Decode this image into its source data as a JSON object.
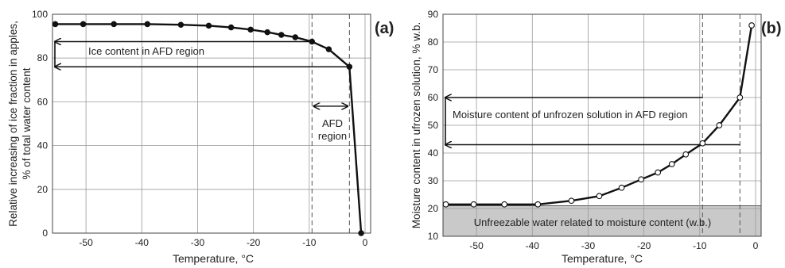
{
  "chart_data": [
    {
      "type": "line",
      "panel_label": "(a)",
      "xlabel": "Temperature, ",
      "xlabel_unit": "°C",
      "ylabel_lines": [
        "Relative increasing of ice fraction in apples,",
        "% of total water content"
      ],
      "xlim": [
        -56,
        1
      ],
      "ylim": [
        0,
        100
      ],
      "x_ticks": [
        -50,
        -40,
        -30,
        -20,
        -10,
        0
      ],
      "x_tick_labels": [
        "-50",
        "-40",
        "-30",
        "-20",
        "-10",
        "0"
      ],
      "y_ticks": [
        0,
        20,
        40,
        60,
        80,
        100
      ],
      "y_tick_labels": [
        "0",
        "20",
        "40",
        "60",
        "80",
        "100"
      ],
      "grid": true,
      "series": [
        {
          "marker": "filled",
          "x": [
            -55.5,
            -50.5,
            -45,
            -39,
            -33,
            -28,
            -24,
            -20.5,
            -17.5,
            -15,
            -12.5,
            -9.5,
            -6.5,
            -2.8,
            -0.7
          ],
          "y": [
            95.5,
            95.5,
            95.5,
            95.5,
            95.2,
            94.8,
            94,
            93,
            91.8,
            90.6,
            89.5,
            87.5,
            84,
            76,
            0
          ]
        }
      ],
      "vlines": [
        -9.5,
        -2.8
      ],
      "hlines": [
        87.5,
        76
      ],
      "annotations": {
        "ice_content": "Ice content in AFD region",
        "afd_line1": "AFD",
        "afd_line2": "region"
      }
    },
    {
      "type": "line",
      "panel_label": "(b)",
      "xlabel": "Temperature, ",
      "xlabel_unit": "°C",
      "ylabel_lines": [
        "Moisture content in ufrozen solution, % w.b."
      ],
      "xlim": [
        -56,
        1
      ],
      "ylim": [
        10,
        90
      ],
      "x_ticks": [
        -50,
        -40,
        -30,
        -20,
        -10,
        0
      ],
      "x_tick_labels": [
        "-50",
        "-40",
        "-30",
        "-20",
        "-10",
        "0"
      ],
      "y_ticks": [
        10,
        20,
        30,
        40,
        50,
        60,
        70,
        80,
        90
      ],
      "y_tick_labels": [
        "10",
        "20",
        "30",
        "40",
        "50",
        "60",
        "70",
        "80",
        "90"
      ],
      "grid": true,
      "series": [
        {
          "marker": "open",
          "x": [
            -55.5,
            -50.5,
            -45,
            -39,
            -33,
            -28,
            -24,
            -20.5,
            -17.5,
            -15,
            -12.5,
            -9.5,
            -6.5,
            -2.8,
            -0.7
          ],
          "y": [
            21.5,
            21.5,
            21.5,
            21.5,
            22.8,
            24.5,
            27.5,
            30.5,
            33,
            36,
            39.5,
            43.5,
            50,
            60,
            86
          ]
        }
      ],
      "vlines": [
        -9.5,
        -2.8
      ],
      "hlines": [
        60,
        43
      ],
      "band": [
        10,
        21
      ],
      "annotations": {
        "moisture_content": "Moisture content of unfrozen solution in AFD region",
        "unfreezable": "Unfreezable water related to moisture content (w.b.)"
      }
    }
  ]
}
